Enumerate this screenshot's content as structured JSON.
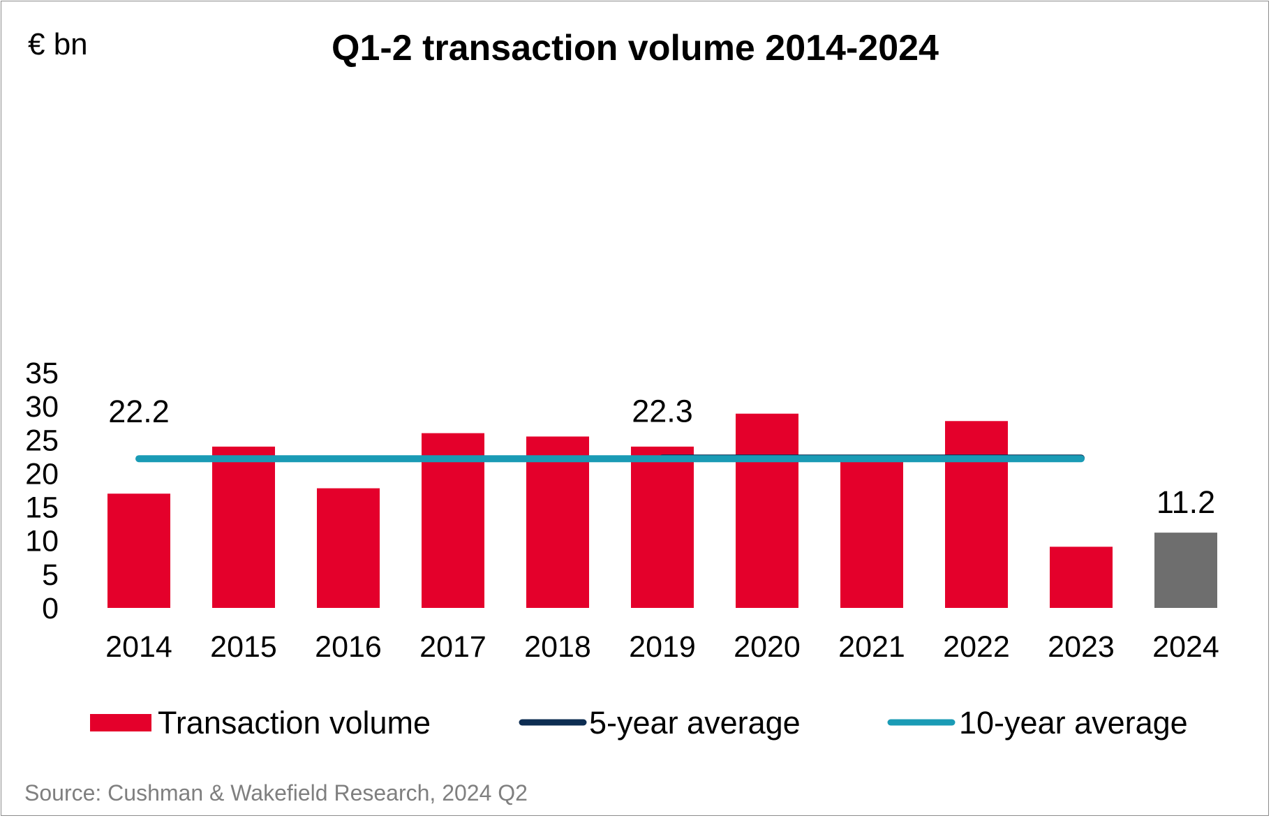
{
  "chart_data": {
    "type": "bar",
    "title": "Q1-2 transaction volume 2014-2024",
    "unit_label": "€ bn",
    "xlabel": "",
    "ylabel": "€ bn",
    "ylim": [
      0,
      35
    ],
    "y_ticks": [
      0,
      5,
      10,
      15,
      20,
      25,
      30,
      35
    ],
    "grid": false,
    "categories": [
      "2014",
      "2015",
      "2016",
      "2017",
      "2018",
      "2019",
      "2020",
      "2021",
      "2022",
      "2023",
      "2024"
    ],
    "series": [
      {
        "name": "Transaction volume",
        "type": "bar",
        "values": [
          17.0,
          24.0,
          17.8,
          26.0,
          25.5,
          24.0,
          28.9,
          22.0,
          27.8,
          9.1,
          11.2
        ],
        "colors": [
          "#e4002b",
          "#e4002b",
          "#e4002b",
          "#e4002b",
          "#e4002b",
          "#e4002b",
          "#e4002b",
          "#e4002b",
          "#e4002b",
          "#e4002b",
          "#6e6e6e"
        ]
      },
      {
        "name": "5-year average",
        "type": "line",
        "color": "#0d2d52",
        "x_range": [
          "2019",
          "2023"
        ],
        "value": 22.3
      },
      {
        "name": "10-year average",
        "type": "line",
        "color": "#1a9bb5",
        "x_range": [
          "2014",
          "2023"
        ],
        "value": 22.2
      }
    ],
    "annotations": [
      {
        "text": "22.2",
        "category": "2014",
        "value": 22.2
      },
      {
        "text": "22.3",
        "category": "2019",
        "value": 22.3
      },
      {
        "text": "11.2",
        "category": "2024",
        "value": 11.2
      }
    ],
    "legend_position": "bottom",
    "source": "Source: Cushman & Wakefield Research, 2024 Q2"
  }
}
